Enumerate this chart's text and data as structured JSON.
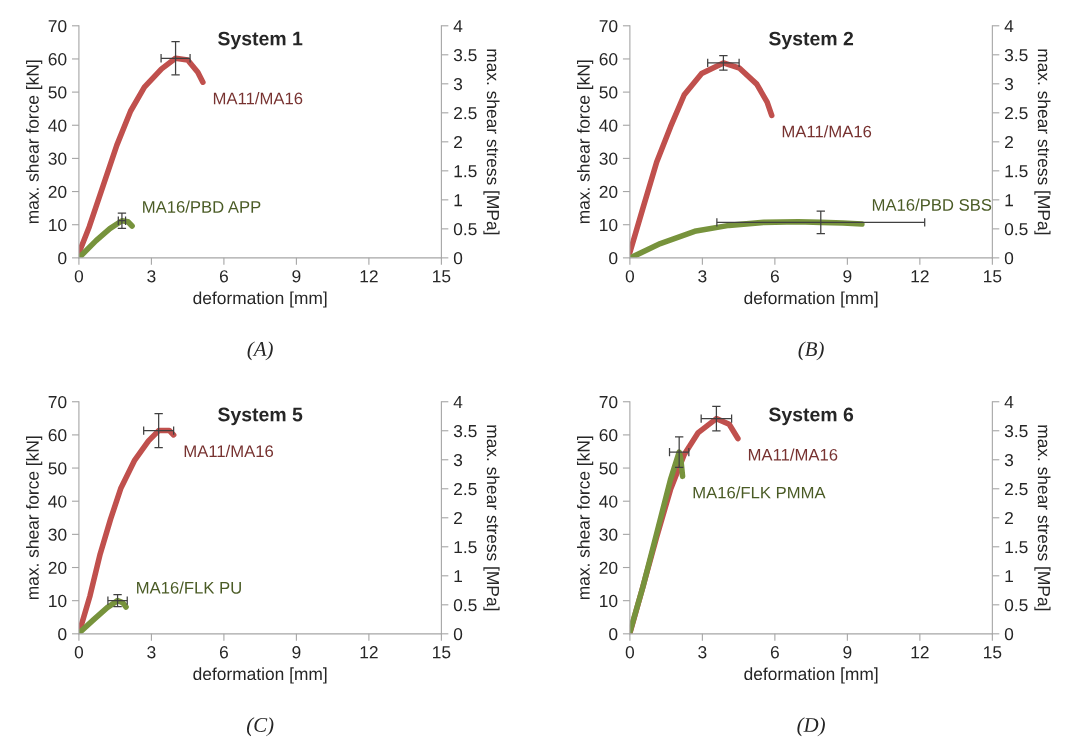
{
  "chart_data": [
    {
      "type": "line",
      "title": "System 1",
      "xlabel": "deformation [mm]",
      "ylabel": "max. shear force [kN]",
      "y2label": "max. shear stress [MPa]",
      "annotations": [
        "(A)"
      ],
      "xlim": [
        0,
        15
      ],
      "xticks": [
        0,
        3,
        6,
        9,
        12,
        15
      ],
      "ylim": [
        0,
        70
      ],
      "yticks": [
        0,
        10,
        20,
        30,
        40,
        50,
        60,
        70
      ],
      "y2lim": [
        0,
        4
      ],
      "y2ticks": [
        0,
        0.5,
        1,
        1.5,
        2,
        2.5,
        3,
        3.5,
        4
      ],
      "series": [
        {
          "name": "MA11/MA16",
          "color": "#c0504d",
          "x": [
            0,
            0.43,
            1.0,
            1.57,
            2.14,
            2.71,
            3.42,
            4.0,
            4.5,
            4.92,
            5.13
          ],
          "values": [
            1.5,
            9.4,
            21.7,
            34,
            44.3,
            51.5,
            57,
            60.2,
            59.7,
            56,
            53
          ],
          "errors": [
            null,
            null,
            null,
            null,
            null,
            null,
            null,
            5,
            null,
            null,
            null
          ],
          "xerrors": [
            null,
            null,
            null,
            null,
            null,
            null,
            null,
            0.6,
            null,
            null,
            null
          ]
        },
        {
          "name": "MA16/PBD APP",
          "color": "#77933c",
          "x": [
            0,
            0.71,
            1.28,
            1.78,
            2.03,
            2.2
          ],
          "values": [
            0,
            5.2,
            8.8,
            11.2,
            10.9,
            9.6
          ],
          "errors": [
            null,
            null,
            null,
            2.3,
            null,
            null
          ],
          "xerrors": [
            null,
            null,
            null,
            0.15,
            null,
            null
          ]
        }
      ]
    },
    {
      "type": "line",
      "title": "System 2",
      "xlabel": "deformation [mm]",
      "ylabel": "max. shear force [kN]",
      "y2label": "max. shear stress [MPa]",
      "annotations": [
        "(B)"
      ],
      "xlim": [
        0,
        15
      ],
      "xticks": [
        0,
        3,
        6,
        9,
        12,
        15
      ],
      "ylim": [
        0,
        70
      ],
      "yticks": [
        0,
        10,
        20,
        30,
        40,
        50,
        60,
        70
      ],
      "y2lim": [
        0,
        4
      ],
      "y2ticks": [
        0,
        0.5,
        1,
        1.5,
        2,
        2.5,
        3,
        3.5,
        4
      ],
      "series": [
        {
          "name": "MA11/MA16",
          "color": "#c0504d",
          "x": [
            0,
            0.54,
            1.11,
            1.68,
            2.25,
            2.97,
            3.87,
            4.54,
            5.25,
            5.68,
            5.87
          ],
          "values": [
            1.6,
            15,
            28.9,
            39.5,
            49.2,
            55.6,
            58.8,
            57.2,
            52.4,
            47,
            43
          ],
          "errors": [
            null,
            null,
            null,
            null,
            null,
            null,
            2.2,
            null,
            null,
            null,
            null
          ],
          "xerrors": [
            null,
            null,
            null,
            null,
            null,
            null,
            0.65,
            null,
            null,
            null,
            null
          ]
        },
        {
          "name": "MA16/PBD SBS",
          "color": "#77933c",
          "x": [
            0.11,
            1.26,
            2.68,
            4.1,
            5.54,
            6.96,
            7.9,
            8.82,
            9.6
          ],
          "values": [
            0.3,
            4.3,
            8,
            9.8,
            10.7,
            10.9,
            10.7,
            10.5,
            10.2
          ],
          "errors": [
            null,
            null,
            null,
            null,
            null,
            null,
            3.4,
            null,
            null
          ],
          "xerrors": [
            null,
            null,
            null,
            null,
            null,
            null,
            4.3,
            null,
            null
          ]
        }
      ]
    },
    {
      "type": "line",
      "title": "System 5",
      "xlabel": "deformation [mm]",
      "ylabel": "max. shear force [kN]",
      "y2label": "max. shear stress [MPa]",
      "annotations": [
        "(C)"
      ],
      "xlim": [
        0,
        15
      ],
      "xticks": [
        0,
        3,
        6,
        9,
        12,
        15
      ],
      "ylim": [
        0,
        70
      ],
      "yticks": [
        0,
        10,
        20,
        30,
        40,
        50,
        60,
        70
      ],
      "y2lim": [
        0,
        4
      ],
      "y2ticks": [
        0,
        0.5,
        1,
        1.5,
        2,
        2.5,
        3,
        3.5,
        4
      ],
      "series": [
        {
          "name": "MA11/MA16",
          "color": "#c0504d",
          "x": [
            0.06,
            0.46,
            0.88,
            1.31,
            1.74,
            2.31,
            2.88,
            3.3,
            3.74,
            3.92
          ],
          "values": [
            1.6,
            11.5,
            24.1,
            34.6,
            44,
            52.4,
            58.2,
            61.3,
            61.3,
            60
          ],
          "errors": [
            null,
            null,
            null,
            null,
            null,
            null,
            null,
            5.1,
            null,
            null
          ],
          "xerrors": [
            null,
            null,
            null,
            null,
            null,
            null,
            null,
            0.62,
            null,
            null
          ]
        },
        {
          "name": "MA16/FLK PU",
          "color": "#77933c",
          "x": [
            0,
            0.6,
            1.17,
            1.6,
            1.81,
            1.95
          ],
          "values": [
            0.2,
            4.2,
            7.9,
            10,
            9.4,
            8.1
          ],
          "errors": [
            null,
            null,
            null,
            1.8,
            null,
            null
          ],
          "xerrors": [
            null,
            null,
            null,
            0.4,
            null,
            null
          ]
        }
      ]
    },
    {
      "type": "line",
      "title": "System 6",
      "xlabel": "deformation [mm]",
      "ylabel": "max. shear force [kN]",
      "y2label": "max. shear stress [MPa]",
      "annotations": [
        "(D)"
      ],
      "xlim": [
        0,
        15
      ],
      "xticks": [
        0,
        3,
        6,
        9,
        12,
        15
      ],
      "ylim": [
        0,
        70
      ],
      "yticks": [
        0,
        10,
        20,
        30,
        40,
        50,
        60,
        70
      ],
      "y2lim": [
        0,
        4
      ],
      "y2ticks": [
        0,
        0.5,
        1,
        1.5,
        2,
        2.5,
        3,
        3.5,
        4
      ],
      "series": [
        {
          "name": "MA11/MA16",
          "color": "#c0504d",
          "x": [
            0,
            0.54,
            1.11,
            1.68,
            2.25,
            2.83,
            3.58,
            4.11,
            4.47
          ],
          "values": [
            0.2,
            14.2,
            29.3,
            43.5,
            54.1,
            60.7,
            64.9,
            63.2,
            58.9
          ],
          "errors": [
            null,
            null,
            null,
            null,
            null,
            null,
            3.7,
            null,
            null
          ],
          "xerrors": [
            null,
            null,
            null,
            null,
            null,
            null,
            0.63,
            null,
            null
          ]
        },
        {
          "name": "MA16/FLK PMMA",
          "color": "#77933c",
          "x": [
            0,
            0.54,
            1.11,
            1.68,
            2.04,
            2.11,
            2.18
          ],
          "values": [
            0.5,
            14.2,
            30.3,
            46.5,
            54.8,
            52.6,
            47.5
          ],
          "errors": [
            null,
            null,
            null,
            null,
            4.6,
            null,
            null
          ],
          "xerrors": [
            null,
            null,
            null,
            null,
            0.4,
            null,
            null
          ]
        }
      ]
    }
  ]
}
